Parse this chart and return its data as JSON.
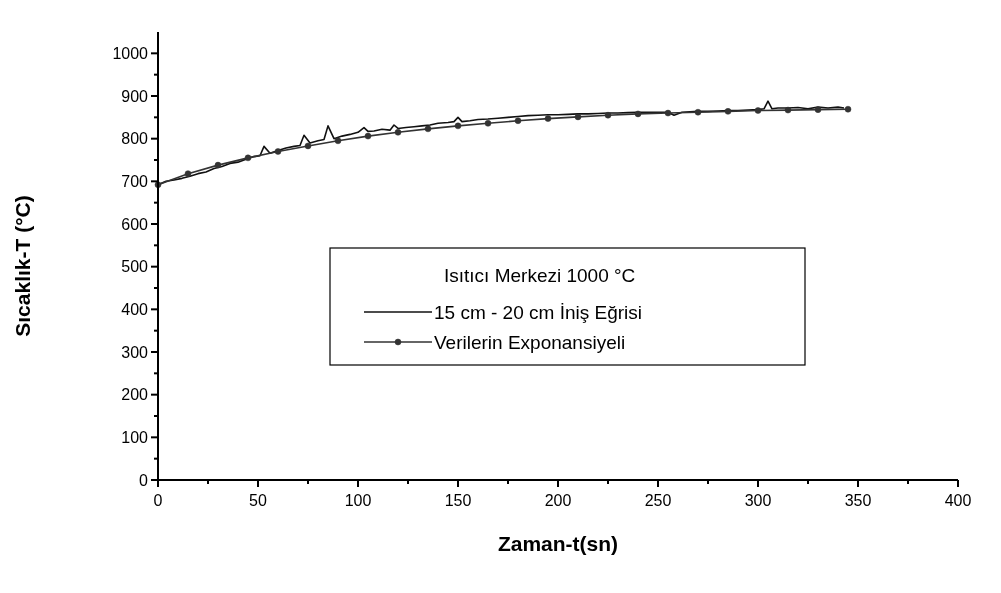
{
  "chart_data": {
    "type": "line",
    "xlabel": "Zaman-t(sn)",
    "ylabel": "Sıcaklık-T (°C)",
    "legend_title": "Isıtıcı Merkezi 1000 °C",
    "legend": "bottom left",
    "grid": false,
    "xlim": [
      0,
      400
    ],
    "ylim": [
      0,
      1050
    ],
    "xticks": [
      0,
      {
        "value": 25,
        "label": null
      },
      50,
      {
        "value": 75,
        "label": null
      },
      100,
      {
        "value": 125,
        "label": null
      },
      150,
      {
        "value": 175,
        "label": null
      },
      200,
      {
        "value": 225,
        "label": null
      },
      250,
      {
        "value": 275,
        "label": null
      },
      300,
      {
        "value": 325,
        "label": null
      },
      350,
      {
        "value": 375,
        "label": null
      },
      400
    ],
    "yticks": [
      0,
      {
        "value": 50,
        "label": null
      },
      100,
      {
        "value": 150,
        "label": null
      },
      200,
      {
        "value": 250,
        "label": null
      },
      300,
      {
        "value": 350,
        "label": null
      },
      400,
      {
        "value": 450,
        "label": null
      },
      500,
      {
        "value": 550,
        "label": null
      },
      600,
      {
        "value": 650,
        "label": null
      },
      700,
      {
        "value": 750,
        "label": null
      },
      800,
      {
        "value": 850,
        "label": null
      },
      900,
      {
        "value": 950,
        "label": null
      },
      1000
    ],
    "series": [
      {
        "name": "15 cm - 20 cm İniş Eğrisi",
        "color": "#111111",
        "marker": "none",
        "x": [
          0,
          4,
          8,
          12,
          16,
          20,
          24,
          28,
          32,
          36,
          40,
          44,
          48,
          51,
          53,
          56,
          60,
          64,
          68,
          71,
          73,
          76,
          80,
          83,
          85,
          88,
          92,
          96,
          100,
          103,
          105,
          108,
          112,
          116,
          118,
          120,
          124,
          128,
          132,
          136,
          140,
          145,
          148,
          150,
          152,
          156,
          160,
          165,
          170,
          175,
          180,
          185,
          190,
          195,
          200,
          205,
          210,
          215,
          220,
          225,
          230,
          235,
          240,
          245,
          250,
          255,
          258,
          262,
          266,
          270,
          275,
          280,
          285,
          290,
          295,
          300,
          303,
          305,
          307,
          310,
          315,
          320,
          325,
          330,
          335,
          340,
          343
        ],
        "values": [
          692,
          700,
          703,
          707,
          712,
          718,
          722,
          730,
          735,
          742,
          745,
          752,
          758,
          760,
          782,
          766,
          772,
          778,
          782,
          784,
          808,
          790,
          795,
          798,
          830,
          800,
          806,
          810,
          815,
          826,
          817,
          818,
          822,
          820,
          832,
          824,
          826,
          828,
          830,
          832,
          836,
          838,
          840,
          850,
          840,
          842,
          845,
          846,
          848,
          850,
          852,
          854,
          855,
          856,
          856,
          857,
          858,
          858,
          859,
          860,
          860,
          861,
          862,
          862,
          862,
          862,
          855,
          862,
          863,
          864,
          864,
          865,
          866,
          866,
          867,
          868,
          870,
          888,
          870,
          872,
          872,
          873,
          870,
          874,
          872,
          874,
          872
        ]
      },
      {
        "name": "Verilerin Exponansiyeli",
        "color": "#333333",
        "marker": "circle",
        "x": [
          0,
          15,
          30,
          45,
          60,
          75,
          90,
          105,
          120,
          135,
          150,
          165,
          180,
          195,
          210,
          225,
          240,
          255,
          270,
          285,
          300,
          315,
          330,
          345
        ],
        "values": [
          692,
          718,
          738,
          755,
          770,
          783,
          795,
          806,
          815,
          823,
          830,
          836,
          842,
          847,
          851,
          855,
          858,
          860,
          862,
          864,
          866,
          867,
          868,
          869
        ]
      }
    ]
  }
}
